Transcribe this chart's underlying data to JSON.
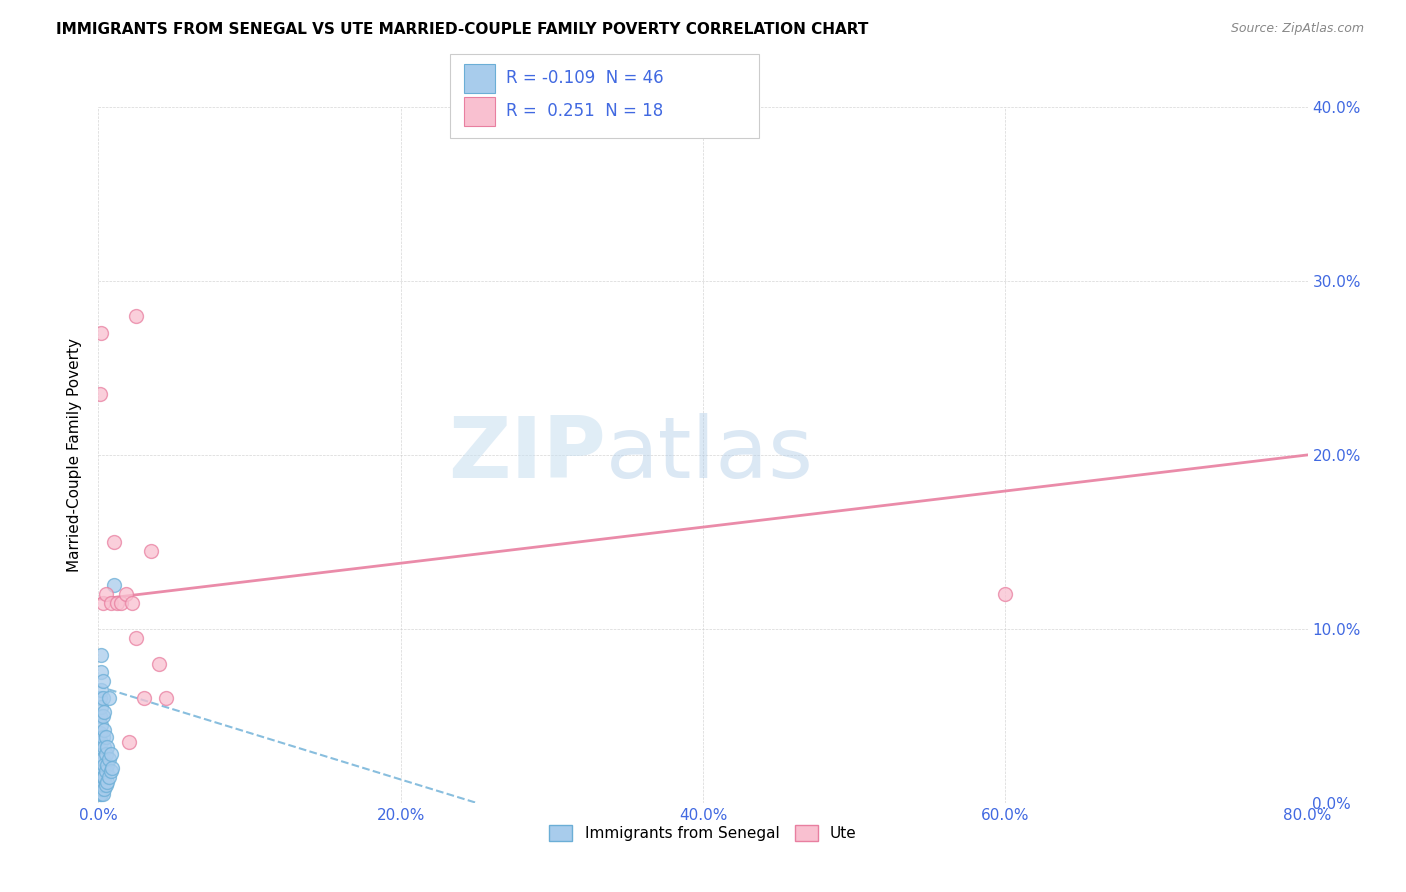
{
  "title": "IMMIGRANTS FROM SENEGAL VS UTE MARRIED-COUPLE FAMILY POVERTY CORRELATION CHART",
  "source": "Source: ZipAtlas.com",
  "ylabel_label": "Married-Couple Family Poverty",
  "xlim": [
    0.0,
    0.8
  ],
  "ylim": [
    0.0,
    0.4
  ],
  "xticks": [
    0.0,
    0.2,
    0.4,
    0.6,
    0.8
  ],
  "yticks": [
    0.0,
    0.1,
    0.2,
    0.3,
    0.4
  ],
  "series1_label": "Immigrants from Senegal",
  "series1_R": -0.109,
  "series1_N": 46,
  "series1_color": "#a8ccec",
  "series1_edge": "#6baed6",
  "series2_label": "Ute",
  "series2_R": 0.251,
  "series2_N": 18,
  "series2_color": "#f9c0d0",
  "series2_edge": "#e87fa0",
  "background_color": "#ffffff",
  "legend_color": "#4169e1",
  "watermark_zip": "ZIP",
  "watermark_atlas": "atlas",
  "blue_scatter_x": [
    0.001,
    0.001,
    0.001,
    0.001,
    0.001,
    0.001,
    0.001,
    0.002,
    0.002,
    0.002,
    0.002,
    0.002,
    0.002,
    0.002,
    0.002,
    0.002,
    0.002,
    0.002,
    0.003,
    0.003,
    0.003,
    0.003,
    0.003,
    0.003,
    0.003,
    0.003,
    0.004,
    0.004,
    0.004,
    0.004,
    0.004,
    0.004,
    0.005,
    0.005,
    0.005,
    0.005,
    0.006,
    0.006,
    0.006,
    0.007,
    0.007,
    0.007,
    0.008,
    0.008,
    0.009,
    0.01
  ],
  "blue_scatter_y": [
    0.005,
    0.01,
    0.02,
    0.03,
    0.04,
    0.05,
    0.06,
    0.005,
    0.008,
    0.012,
    0.018,
    0.025,
    0.035,
    0.045,
    0.055,
    0.065,
    0.075,
    0.085,
    0.005,
    0.01,
    0.015,
    0.025,
    0.038,
    0.05,
    0.06,
    0.07,
    0.008,
    0.015,
    0.022,
    0.032,
    0.042,
    0.052,
    0.01,
    0.018,
    0.028,
    0.038,
    0.012,
    0.022,
    0.032,
    0.015,
    0.025,
    0.06,
    0.018,
    0.028,
    0.02,
    0.125
  ],
  "pink_scatter_x": [
    0.001,
    0.002,
    0.003,
    0.005,
    0.008,
    0.01,
    0.012,
    0.015,
    0.018,
    0.02,
    0.022,
    0.025,
    0.03,
    0.035,
    0.04,
    0.045,
    0.6,
    0.025
  ],
  "pink_scatter_y": [
    0.235,
    0.27,
    0.115,
    0.12,
    0.115,
    0.15,
    0.115,
    0.115,
    0.12,
    0.035,
    0.115,
    0.28,
    0.06,
    0.145,
    0.08,
    0.06,
    0.12,
    0.095
  ],
  "pink_trendline_x0": 0.0,
  "pink_trendline_y0": 0.117,
  "pink_trendline_x1": 0.8,
  "pink_trendline_y1": 0.2,
  "blue_trendline_x0": 0.0,
  "blue_trendline_y0": 0.067,
  "blue_trendline_x1": 0.25,
  "blue_trendline_y1": 0.0
}
